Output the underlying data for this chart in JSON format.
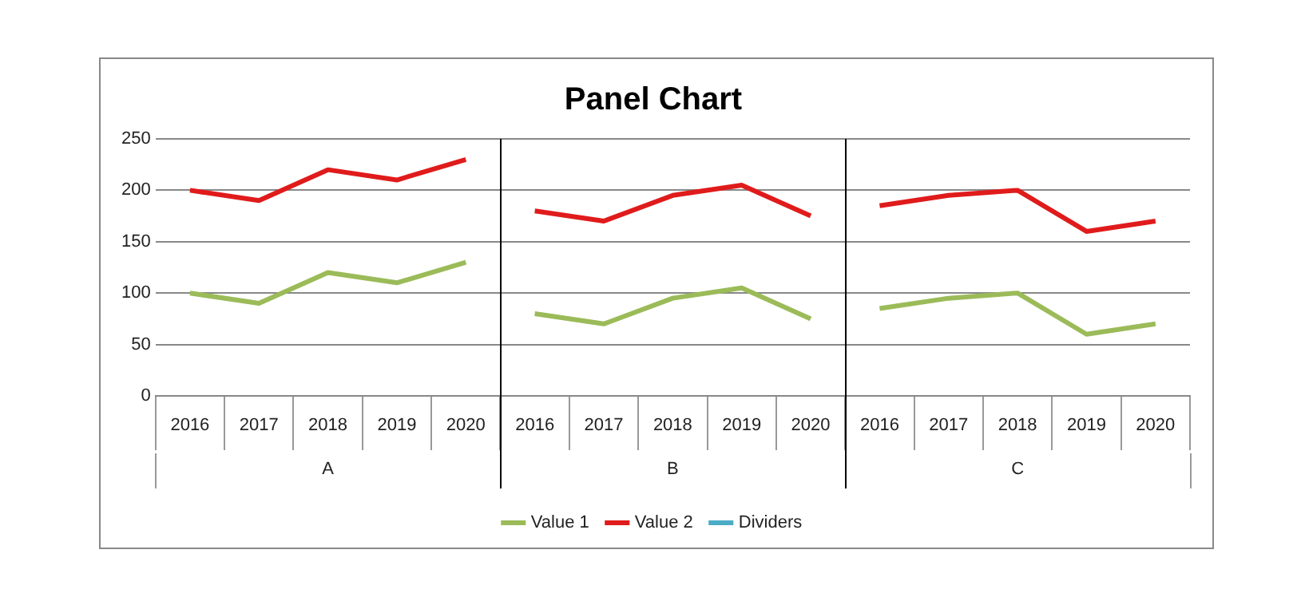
{
  "chart_data": {
    "type": "line",
    "title": "Panel Chart",
    "categories": [
      "2016",
      "2017",
      "2018",
      "2019",
      "2020",
      "2016",
      "2017",
      "2018",
      "2019",
      "2020",
      "2016",
      "2017",
      "2018",
      "2019",
      "2020"
    ],
    "series": [
      {
        "name": "Value 1",
        "color": "#9bbb59",
        "values": [
          100,
          90,
          120,
          110,
          130,
          80,
          70,
          95,
          105,
          75,
          85,
          95,
          100,
          60,
          70
        ]
      },
      {
        "name": "Value 2",
        "color": "#e01b1b",
        "values": [
          200,
          190,
          220,
          210,
          230,
          180,
          170,
          195,
          205,
          175,
          185,
          195,
          200,
          160,
          170
        ]
      },
      {
        "name": "Dividers",
        "color": "#4bacc6",
        "values": [
          null,
          null,
          null,
          null,
          null,
          null,
          null,
          null,
          null,
          null,
          null,
          null,
          null,
          null,
          null
        ]
      }
    ],
    "annotations": [
      "A",
      "B",
      "C"
    ],
    "ylim": [
      0,
      250
    ],
    "yticks": [
      0,
      50,
      100,
      150,
      200,
      250
    ],
    "grid": "y",
    "legend": "bottom",
    "marker": "none"
  }
}
